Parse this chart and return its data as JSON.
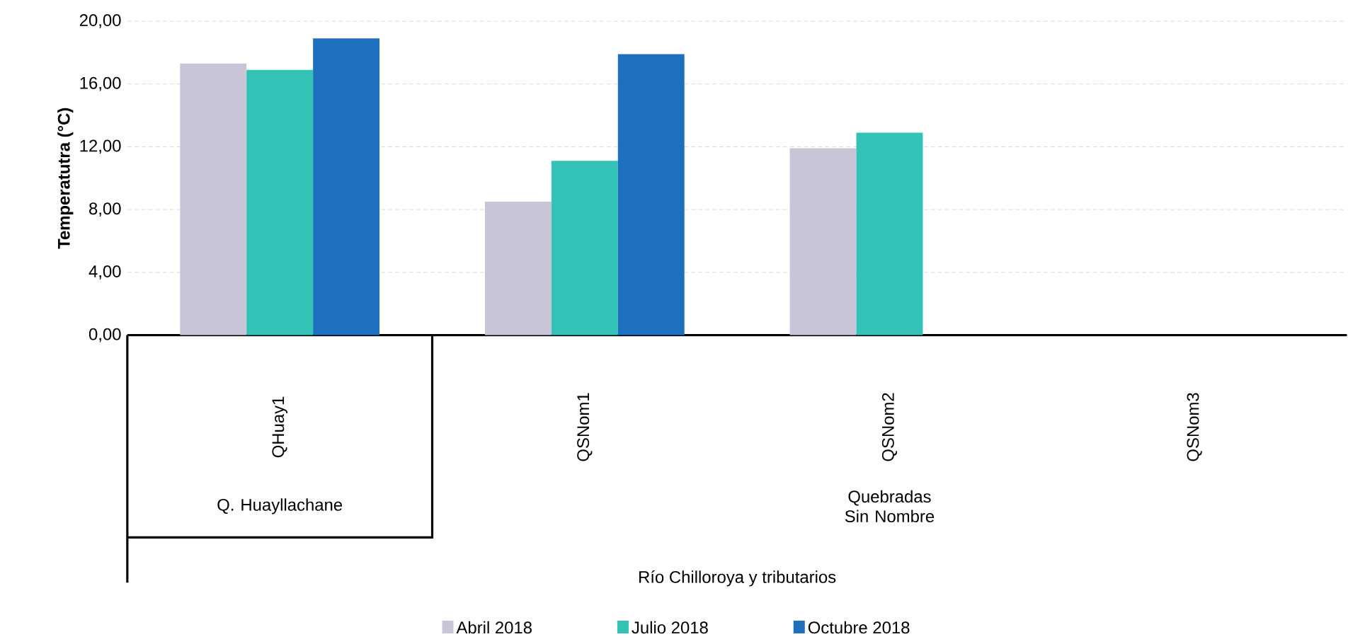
{
  "chart_data": {
    "type": "bar",
    "ylabel": "Temperatutra (°C)",
    "categories": [
      "QHuay1",
      "QSNom1",
      "QSNom2",
      "QSNom3"
    ],
    "annotations": [
      "Q. Huayllachane",
      "Quebradas Sin Nombre",
      "Río Chilloroya y tributarios"
    ],
    "series": [
      {
        "name": "Abril 2018",
        "color": "#c9c5d9",
        "values": [
          17.3,
          8.5,
          11.9,
          null
        ]
      },
      {
        "name": "Julio 2018",
        "color": "#33c2b6",
        "values": [
          16.9,
          11.1,
          12.9,
          null
        ]
      },
      {
        "name": "Octubre 2018",
        "color": "#1f6fbf",
        "values": [
          18.9,
          17.9,
          null,
          null
        ]
      }
    ],
    "ylim": [
      0,
      20
    ],
    "yticks": [
      {
        "value": 0,
        "label": "0,00"
      },
      {
        "value": 4,
        "label": "4,00"
      },
      {
        "value": 8,
        "label": "8,00"
      },
      {
        "value": 12,
        "label": "12,00"
      },
      {
        "value": 16,
        "label": "16,00"
      },
      {
        "value": 20,
        "label": "20,00"
      }
    ],
    "grid": "y",
    "legend": "bottom"
  }
}
